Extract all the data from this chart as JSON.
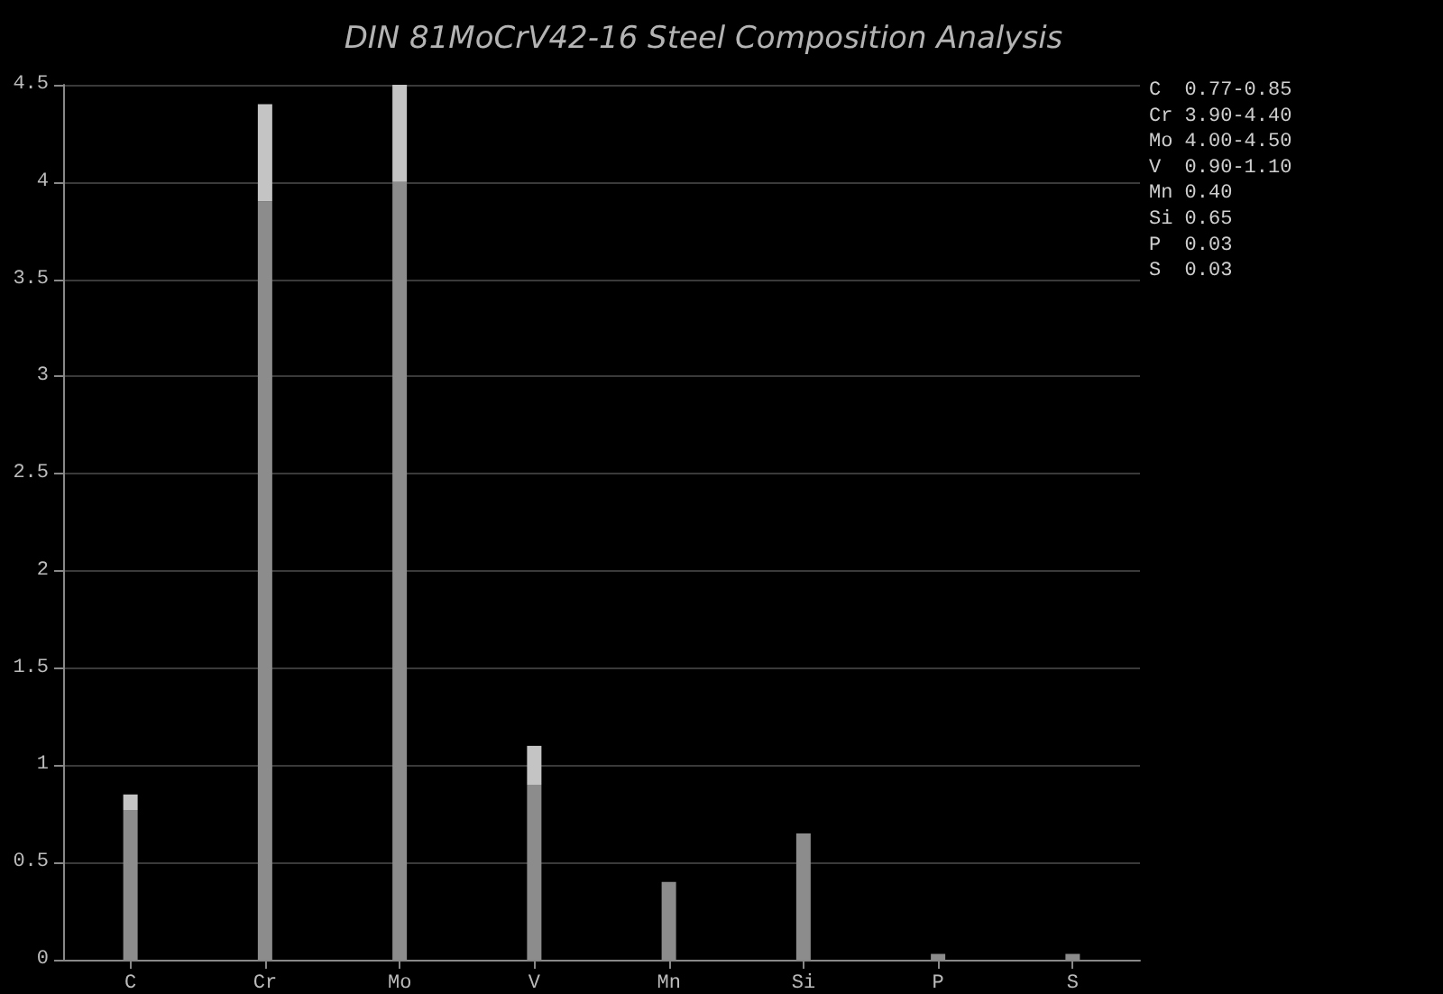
{
  "chart_data": {
    "type": "bar",
    "title": "DIN 81MoCrV42-16 Steel Composition Analysis",
    "categories": [
      "C",
      "Cr",
      "Mo",
      "V",
      "Mn",
      "Si",
      "P",
      "S"
    ],
    "stacked": true,
    "series": [
      {
        "color": "#8c8c8c",
        "values": [
          0.77,
          3.9,
          4.0,
          0.9,
          0.4,
          0.65,
          0.03,
          0.03
        ]
      },
      {
        "color": "#c4c4c4",
        "values": [
          0.08,
          0.5,
          0.5,
          0.2,
          0,
          0,
          0,
          0
        ]
      }
    ],
    "ylim": [
      0,
      4.5
    ],
    "yticks": [
      0,
      0.5,
      1,
      1.5,
      2,
      2.5,
      3,
      3.5,
      4,
      4.5
    ],
    "grid": "y",
    "annotations": [
      "C  0.77-0.85",
      "Cr 3.90-4.40",
      "Mo 4.00-4.50",
      "V  0.90-1.10",
      "Mn 0.40",
      "Si 0.65",
      "P  0.03",
      "S  0.03"
    ]
  }
}
